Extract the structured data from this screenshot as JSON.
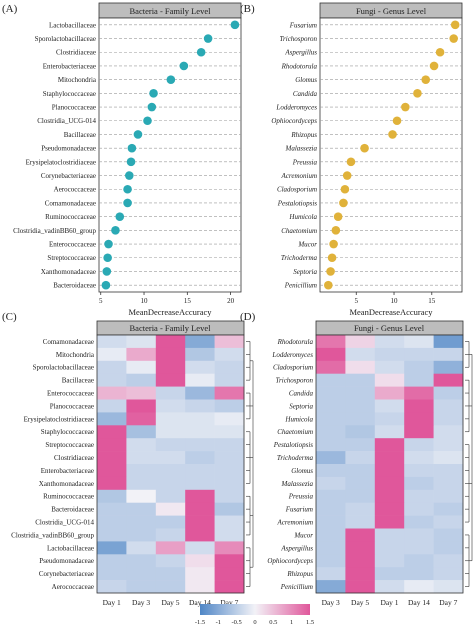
{
  "panels": {
    "a_tag": "(A)",
    "b_tag": "(B)",
    "c_tag": "(C)",
    "d_tag": "(D)"
  },
  "colors": {
    "bacteria_dot": "#2aa9b4",
    "fungi_dot": "#e0b23a",
    "strip_bg": "#bdbdbd",
    "heat_low": "#4f86c6",
    "heat_mid": "#f2f2f7",
    "heat_high": "#e0579b"
  },
  "chart_data": [
    {
      "type": "scatter",
      "title": "Bacteria - Family Level",
      "xlabel": "MeanDecreaseAccuracy",
      "xticks": [
        5,
        10,
        15,
        20
      ],
      "xlim": [
        4.8,
        21.2
      ],
      "categories": [
        "Lactobacillaceae",
        "Sporolactobacillaceae",
        "Clostridiaceae",
        "Enterobacteriaceae",
        "Mitochondria",
        "Staphylococcaceae",
        "Planococcaceae",
        "Clostridia_UCG-014",
        "Bacillaceae",
        "Pseudomonadaceae",
        "Erysipelatoclostridiaceae",
        "Corynebacteriaceae",
        "Aerococcaceae",
        "Comamonadaceae",
        "Ruminococcaceae",
        "Clostridia_vadinBB60_group",
        "Enterococcaceae",
        "Streptococcaceae",
        "Xanthomonadaceae",
        "Bacteroidaceae"
      ],
      "values": [
        20.5,
        17.4,
        16.6,
        14.6,
        13.1,
        11.1,
        10.9,
        10.4,
        9.3,
        8.6,
        8.5,
        8.3,
        8.1,
        8.1,
        7.2,
        6.7,
        5.9,
        5.8,
        5.7,
        5.6
      ]
    },
    {
      "type": "scatter",
      "title": "Fungi - Genus Level",
      "xlabel": "MeanDecreaseAccuracy",
      "xticks": [
        5,
        10,
        15
      ],
      "xlim": [
        0.2,
        19
      ],
      "italic_labels": true,
      "categories": [
        "Fusarium",
        "Trichosporon",
        "Aspergillus",
        "Rhodotorula",
        "Glomus",
        "Candida",
        "Lodderomyces",
        "Ophiocordyceps",
        "Rhizopus",
        "Malassezia",
        "Preussia",
        "Acremonium",
        "Cladosporium",
        "Pestalotiopsis",
        "Humicola",
        "Chaetomium",
        "Mucor",
        "Trichoderma",
        "Septoria",
        "Penicillium"
      ],
      "values": [
        18.1,
        17.9,
        16.1,
        15.3,
        14.2,
        13.1,
        11.5,
        10.4,
        9.8,
        6.1,
        4.3,
        3.8,
        3.5,
        3.3,
        2.6,
        2.3,
        2.0,
        1.8,
        1.6,
        1.3
      ]
    },
    {
      "type": "heatmap",
      "title": "Bacteria - Family Level",
      "columns": [
        "Day 1",
        "Day 3",
        "Day 5",
        "Day 14",
        "Day 7"
      ],
      "rows": [
        "Comamonadaceae",
        "Mitochondria",
        "Sporolactobacillaceae",
        "Bacillaceae",
        "Enterococcaceae",
        "Planococcaceae",
        "Erysipelatoclostridiaceae",
        "Staphylococcaceae",
        "Streptococcaceae",
        "Clostridiaceae",
        "Enterobacteriaceae",
        "Xanthomonadaceae",
        "Ruminococcaceae",
        "Bacteroidaceae",
        "Clostridia_UCG-014",
        "Clostridia_vadinBB60_group",
        "Lactobacillaceae",
        "Pseudomonadaceae",
        "Corynebacteriaceae",
        "Aerococcaceae"
      ],
      "values": [
        [
          -0.3,
          -0.2,
          1.6,
          -1.0,
          0.5
        ],
        [
          -0.1,
          0.7,
          1.6,
          -0.6,
          -0.3
        ],
        [
          -0.4,
          -0.1,
          1.8,
          -0.3,
          -0.4
        ],
        [
          -0.4,
          -0.5,
          1.8,
          -0.1,
          -0.4
        ],
        [
          0.6,
          0.5,
          -0.4,
          -0.8,
          1.2
        ],
        [
          -0.4,
          1.7,
          -0.3,
          -0.4,
          -0.5
        ],
        [
          -0.8,
          1.4,
          -0.2,
          -0.2,
          -0.1
        ],
        [
          1.6,
          -0.7,
          -0.2,
          -0.2,
          -0.2
        ],
        [
          1.5,
          -0.3,
          -0.4,
          -0.4,
          -0.4
        ],
        [
          1.6,
          -0.3,
          -0.3,
          -0.5,
          -0.4
        ],
        [
          1.7,
          -0.4,
          -0.4,
          -0.4,
          -0.4
        ],
        [
          1.6,
          -0.4,
          -0.4,
          -0.4,
          -0.4
        ],
        [
          -0.6,
          0.0,
          -0.4,
          1.6,
          -0.4
        ],
        [
          -0.5,
          -0.5,
          0.1,
          1.6,
          -0.6
        ],
        [
          -0.5,
          -0.5,
          -0.5,
          1.7,
          -0.3
        ],
        [
          -0.5,
          -0.5,
          -0.4,
          1.7,
          -0.3
        ],
        [
          -1.1,
          -0.3,
          0.8,
          -0.3,
          1.0
        ],
        [
          -0.5,
          -0.5,
          -0.4,
          0.2,
          1.6
        ],
        [
          -0.5,
          -0.5,
          -0.5,
          0.1,
          1.7
        ],
        [
          -0.4,
          -0.5,
          -0.5,
          0.1,
          1.7
        ]
      ],
      "legend_ticks": [
        "-1.5",
        "-1",
        "-0.5",
        "0",
        "0.5",
        "1",
        "1.5"
      ],
      "vlim": [
        -1.5,
        1.5
      ]
    },
    {
      "type": "heatmap",
      "title": "Fungi - Genus Level",
      "columns": [
        "Day 3",
        "Day 5",
        "Day 1",
        "Day 14",
        "Day 7"
      ],
      "rows": [
        "Rhodotorula",
        "Lodderomyces",
        "Cladosporium",
        "Trichosporon",
        "Candida",
        "Septoria",
        "Humicola",
        "Chaetomium",
        "Pestalotiopsis",
        "Trichoderma",
        "Glomus",
        "Malassezia",
        "Preussia",
        "Fusarium",
        "Acremonium",
        "Mucor",
        "Aspergillus",
        "Ophiocordyceps",
        "Rhizopus",
        "Penicillium"
      ],
      "italic_labels": true,
      "values": [
        [
          1.2,
          0.3,
          -0.3,
          -0.2,
          -1.2
        ],
        [
          1.6,
          -0.3,
          -0.4,
          -0.4,
          -0.4
        ],
        [
          1.3,
          0.2,
          -0.3,
          -0.5,
          -0.9
        ],
        [
          -0.5,
          -0.5,
          0.2,
          -0.5,
          1.7
        ],
        [
          -0.5,
          -0.5,
          0.7,
          1.3,
          -0.5
        ],
        [
          -0.5,
          -0.5,
          -0.3,
          1.7,
          -0.4
        ],
        [
          -0.5,
          -0.5,
          -0.4,
          1.7,
          -0.4
        ],
        [
          -0.5,
          -0.6,
          -0.3,
          1.7,
          -0.3
        ],
        [
          -0.5,
          -0.5,
          1.7,
          -0.4,
          -0.3
        ],
        [
          -0.8,
          -0.4,
          1.7,
          -0.3,
          -0.2
        ],
        [
          -0.5,
          -0.5,
          1.8,
          -0.4,
          -0.4
        ],
        [
          -0.4,
          -0.5,
          1.8,
          -0.5,
          -0.4
        ],
        [
          -0.5,
          -0.5,
          1.8,
          -0.4,
          -0.4
        ],
        [
          -0.5,
          -0.4,
          1.8,
          -0.4,
          -0.5
        ],
        [
          -0.5,
          -0.4,
          1.8,
          -0.5,
          -0.4
        ],
        [
          -0.5,
          1.8,
          -0.4,
          -0.4,
          -0.5
        ],
        [
          -0.5,
          1.8,
          -0.4,
          -0.4,
          -0.5
        ],
        [
          -0.5,
          1.8,
          -0.4,
          -0.5,
          -0.4
        ],
        [
          -0.4,
          1.8,
          -0.5,
          -0.5,
          -0.4
        ],
        [
          -1.0,
          1.6,
          -0.3,
          -0.1,
          -0.2
        ]
      ]
    }
  ]
}
